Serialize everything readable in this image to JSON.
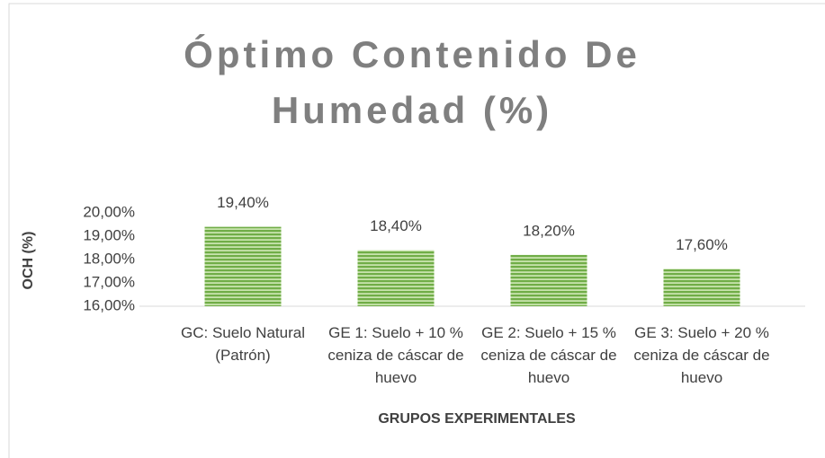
{
  "chart_data": {
    "type": "bar",
    "title": "Óptimo Contenido De Humedad (%)",
    "y_label": "OCH (%)",
    "x_label": "GRUPOS EXPERIMENTALES",
    "categories": [
      "GC: Suelo Natural (Patrón)",
      "GE 1: Suelo + 10 % ceniza de cáscar de huevo",
      "GE 2: Suelo + 15 % ceniza de cáscar de huevo",
      "GE 3: Suelo + 20 % ceniza de cáscar de huevo"
    ],
    "values": [
      19.4,
      18.4,
      18.2,
      17.6
    ],
    "value_labels": [
      "19,40%",
      "18,40%",
      "18,20%",
      "17,60%"
    ],
    "color": "#70ad47",
    "ylim": [
      16,
      20
    ],
    "yticks": [
      {
        "value": 16,
        "label": "16,00%"
      },
      {
        "value": 17,
        "label": "17,00%"
      },
      {
        "value": 18,
        "label": "18,00%"
      },
      {
        "value": 19,
        "label": "19,00%"
      },
      {
        "value": 20,
        "label": "20,00%"
      }
    ],
    "grid": false
  }
}
